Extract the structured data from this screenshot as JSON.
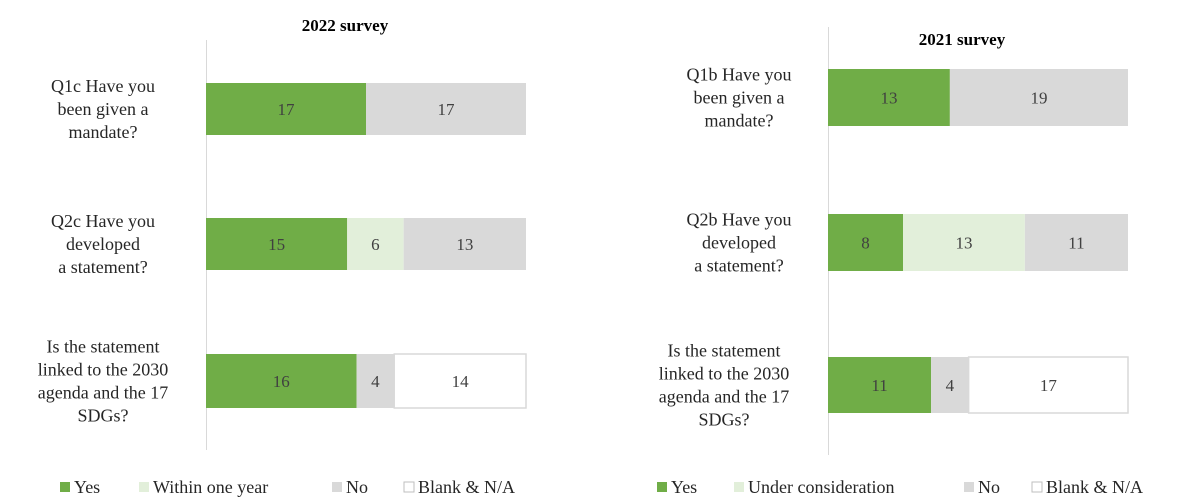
{
  "chart_data": [
    {
      "type": "bar",
      "stacked": true,
      "orientation": "horizontal",
      "title": "2022 survey",
      "categories": [
        [
          "Q1c Have you",
          "been given a",
          "mandate?"
        ],
        [
          "Q2c  Have you",
          "developed",
          "a statement?"
        ],
        [
          "Is the statement",
          "linked to the 2030",
          "agenda and the 17",
          "SDGs?"
        ]
      ],
      "series": [
        {
          "name": "Yes",
          "values": [
            17,
            15,
            16
          ]
        },
        {
          "name": "Within one year",
          "values": [
            null,
            6,
            null
          ]
        },
        {
          "name": "No",
          "values": [
            17,
            13,
            4
          ]
        },
        {
          "name": "Blank & N/A",
          "values": [
            null,
            null,
            14
          ]
        }
      ],
      "legend_position": "bottom",
      "grid": false
    },
    {
      "type": "bar",
      "stacked": true,
      "orientation": "horizontal",
      "title": "2021 survey",
      "categories": [
        [
          "Q1b Have you",
          "been given a",
          "mandate?"
        ],
        [
          "Q2b  Have you",
          "developed",
          "a statement?"
        ],
        [
          "Is the statement",
          "linked to the 2030",
          "agenda and the 17",
          "SDGs?"
        ]
      ],
      "series": [
        {
          "name": "Yes",
          "values": [
            13,
            8,
            11
          ]
        },
        {
          "name": "Under consideration",
          "values": [
            null,
            13,
            null
          ]
        },
        {
          "name": "No",
          "values": [
            19,
            11,
            4
          ]
        },
        {
          "name": "Blank & N/A",
          "values": [
            null,
            null,
            17
          ]
        }
      ],
      "legend_position": "bottom",
      "grid": false
    }
  ],
  "colors": {
    "Yes": "#70ad47",
    "Within one year": "#e2efda",
    "Under consideration": "#e2efda",
    "No": "#d9d9d9",
    "Blank & N/A": "#ffffff",
    "border": "#d9d9d9",
    "axis": "#d9d9d9",
    "text": "#262626"
  }
}
